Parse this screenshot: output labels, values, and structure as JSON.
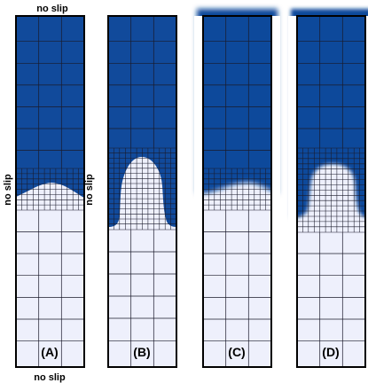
{
  "labels": {
    "top": "no slip",
    "bottom": "no slip",
    "left": "no slip",
    "between": "no slip"
  },
  "panels": [
    {
      "label": "(A)"
    },
    {
      "label": "(B)"
    },
    {
      "label": "(C)"
    },
    {
      "label": "(D)"
    }
  ],
  "colors": {
    "heavy_fluid": "#114a9b",
    "light_fluid": "#eef0fc",
    "grid": "#1a1a2a"
  }
}
